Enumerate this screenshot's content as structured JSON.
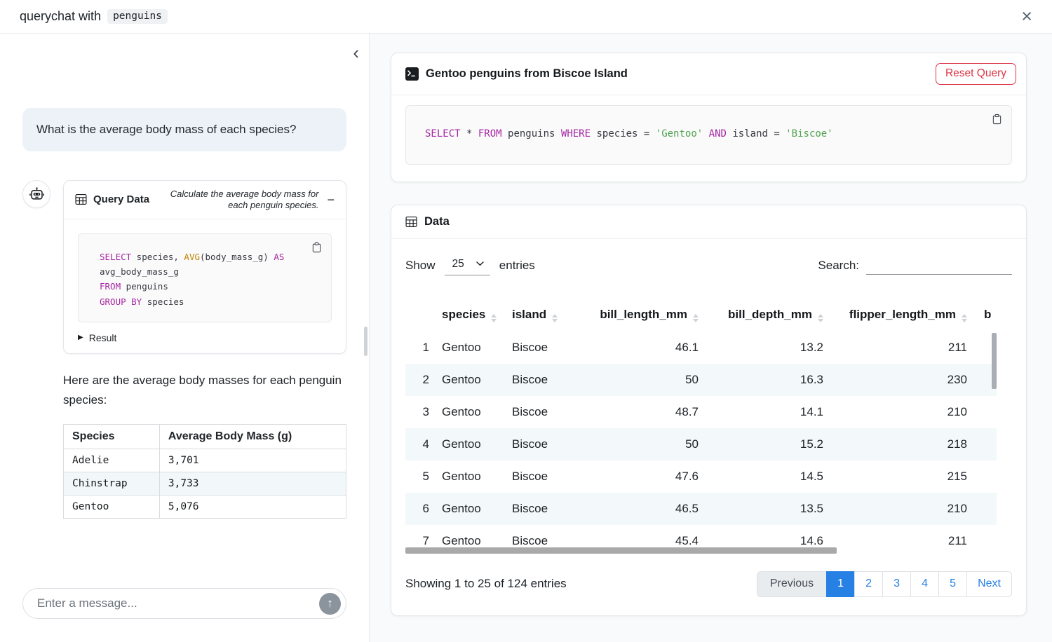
{
  "icons": {
    "close": "×",
    "chevron_left": "‹",
    "minus": "−",
    "caret_right": "▶",
    "arrow_up": "↑"
  },
  "colors": {
    "accent_blue": "#2780e3",
    "danger_red": "#dc3545",
    "sql_keyword": "#a626a4",
    "sql_function": "#c18401",
    "sql_string": "#50a14f",
    "row_stripe": "#f3f8fb"
  },
  "topbar": {
    "title_prefix": "querychat with",
    "dataset": "penguins"
  },
  "sidebar": {
    "user_message": "What is the average body mass of each species?",
    "tool_card": {
      "title": "Query Data",
      "description": "Calculate the average body mass for each penguin species.",
      "result_label": "Result",
      "sql_lines": [
        [
          {
            "t": "SELECT",
            "c": "kw"
          },
          {
            "t": " species, ",
            "c": "pl"
          },
          {
            "t": "AVG",
            "c": "fn"
          },
          {
            "t": "(body_mass_g) ",
            "c": "pl"
          },
          {
            "t": "AS",
            "c": "kw"
          }
        ],
        [
          {
            "t": "avg_body_mass_g",
            "c": "pl"
          }
        ],
        [
          {
            "t": "FROM",
            "c": "kw"
          },
          {
            "t": " penguins",
            "c": "pl"
          }
        ],
        [
          {
            "t": "GROUP BY",
            "c": "kw"
          },
          {
            "t": " species",
            "c": "pl"
          }
        ]
      ]
    },
    "answer_intro": "Here are the average body masses for each penguin species:",
    "answer_table": {
      "headers": [
        "Species",
        "Average Body Mass (g)"
      ],
      "rows": [
        [
          "Adelie",
          "3,701"
        ],
        [
          "Chinstrap",
          "3,733"
        ],
        [
          "Gentoo",
          "5,076"
        ]
      ]
    },
    "chat_input_placeholder": "Enter a message..."
  },
  "main": {
    "query_card": {
      "title": "Gentoo penguins from Biscoe Island",
      "reset_label": "Reset Query",
      "sql_lines": [
        [
          {
            "t": "SELECT",
            "c": "kw"
          },
          {
            "t": " * ",
            "c": "pl"
          },
          {
            "t": "FROM",
            "c": "kw"
          },
          {
            "t": " penguins ",
            "c": "pl"
          },
          {
            "t": "WHERE",
            "c": "kw"
          },
          {
            "t": " species = ",
            "c": "pl"
          },
          {
            "t": "'Gentoo'",
            "c": "str"
          },
          {
            "t": " ",
            "c": "pl"
          },
          {
            "t": "AND",
            "c": "kw"
          },
          {
            "t": " island = ",
            "c": "pl"
          },
          {
            "t": "'Biscoe'",
            "c": "str"
          }
        ]
      ]
    },
    "data_card": {
      "title": "Data",
      "length_control": {
        "prefix": "Show",
        "value": "25",
        "suffix": "entries"
      },
      "search_label": "Search:",
      "table": {
        "columns": [
          {
            "label": "",
            "numeric": false,
            "sortable": false
          },
          {
            "label": "species",
            "numeric": false,
            "sortable": true
          },
          {
            "label": "island",
            "numeric": false,
            "sortable": true
          },
          {
            "label": "bill_length_mm",
            "numeric": true,
            "sortable": true
          },
          {
            "label": "bill_depth_mm",
            "numeric": true,
            "sortable": true
          },
          {
            "label": "flipper_length_mm",
            "numeric": true,
            "sortable": true
          },
          {
            "label": "b",
            "numeric": false,
            "sortable": false
          }
        ],
        "rows": [
          [
            "1",
            "Gentoo",
            "Biscoe",
            "46.1",
            "13.2",
            "211",
            ""
          ],
          [
            "2",
            "Gentoo",
            "Biscoe",
            "50",
            "16.3",
            "230",
            ""
          ],
          [
            "3",
            "Gentoo",
            "Biscoe",
            "48.7",
            "14.1",
            "210",
            ""
          ],
          [
            "4",
            "Gentoo",
            "Biscoe",
            "50",
            "15.2",
            "218",
            ""
          ],
          [
            "5",
            "Gentoo",
            "Biscoe",
            "47.6",
            "14.5",
            "215",
            ""
          ],
          [
            "6",
            "Gentoo",
            "Biscoe",
            "46.5",
            "13.5",
            "210",
            ""
          ],
          [
            "7",
            "Gentoo",
            "Biscoe",
            "45.4",
            "14.6",
            "211",
            ""
          ]
        ]
      },
      "footer": {
        "info": "Showing 1 to 25 of 124 entries",
        "pagination": [
          {
            "label": "Previous",
            "state": "disabled"
          },
          {
            "label": "1",
            "state": "active"
          },
          {
            "label": "2",
            "state": "link"
          },
          {
            "label": "3",
            "state": "link"
          },
          {
            "label": "4",
            "state": "link"
          },
          {
            "label": "5",
            "state": "link"
          },
          {
            "label": "Next",
            "state": "link"
          }
        ]
      }
    }
  }
}
